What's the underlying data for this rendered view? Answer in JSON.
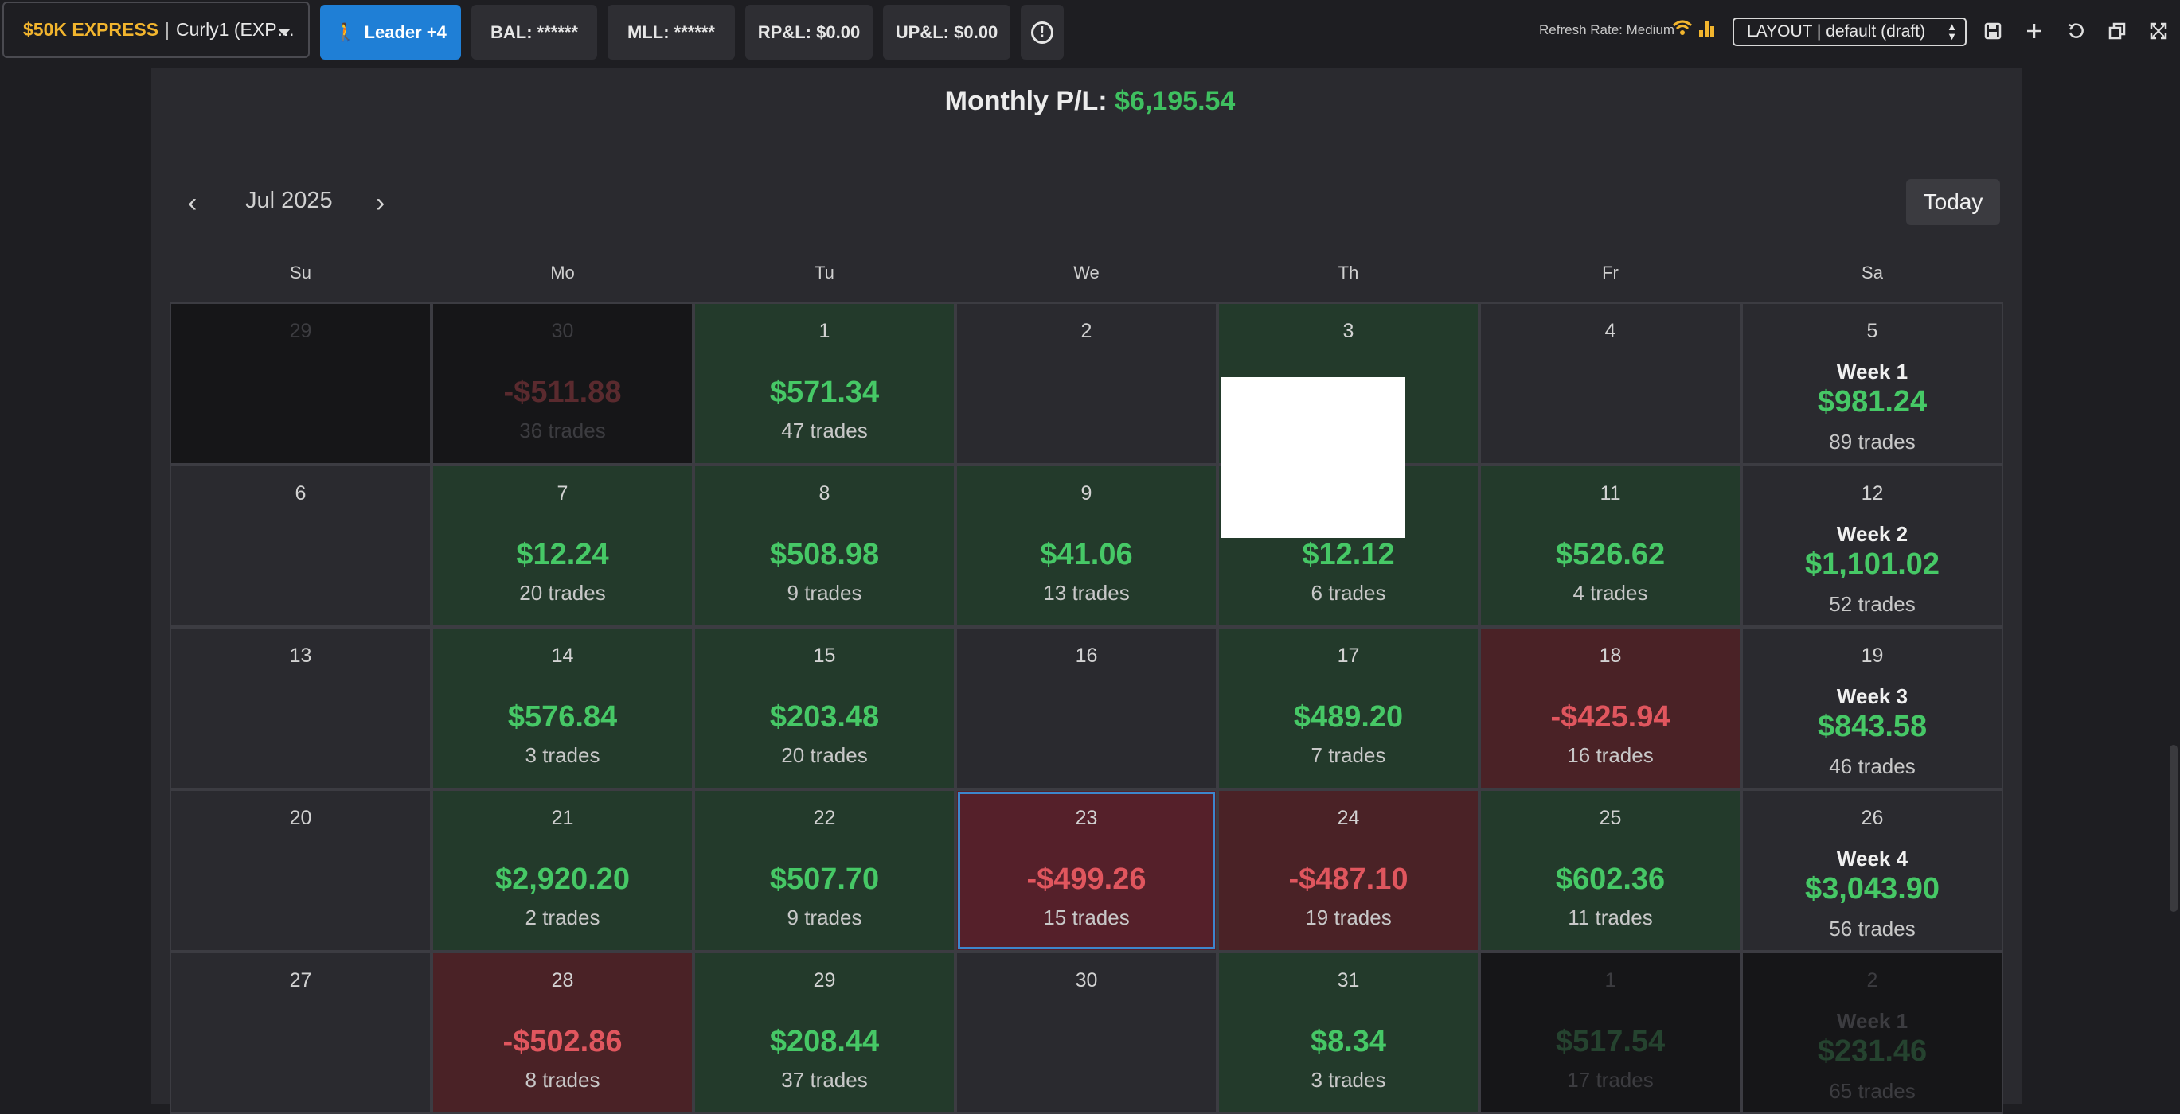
{
  "topbar": {
    "account_name": "$50K EXPRESS",
    "account_sep": "|",
    "account_sub": "Curly1 (EXP…",
    "leader_label": "Leader +4",
    "bal": "BAL: ******",
    "mll": "MLL: ******",
    "rpl": "RP&L: $0.00",
    "upl": "UP&L: $0.00",
    "refresh_rate": "Refresh Rate: Medium",
    "layout_select": "LAYOUT | default (draft)"
  },
  "calendar": {
    "monthly_label": "Monthly P/L:",
    "monthly_value": "$6,195.54",
    "month": "Jul 2025",
    "today_label": "Today",
    "weekdays": [
      "Su",
      "Mo",
      "Tu",
      "We",
      "Th",
      "Fr",
      "Sa"
    ],
    "days": [
      {
        "day": "29",
        "state": "outside"
      },
      {
        "day": "30",
        "pnl": "-$511.88",
        "trades": "36 trades",
        "state": "outside",
        "sign": "r"
      },
      {
        "day": "1",
        "pnl": "$571.34",
        "trades": "47 trades",
        "state": "pos",
        "sign": "g"
      },
      {
        "day": "2",
        "state": "empty"
      },
      {
        "day": "3",
        "state": "pos"
      },
      {
        "day": "4",
        "state": "empty"
      },
      {
        "day": "5",
        "week": "Week 1",
        "pnl": "$981.24",
        "trades": "89 trades",
        "state": "week",
        "sign": "g"
      },
      {
        "day": "6",
        "state": "empty"
      },
      {
        "day": "7",
        "pnl": "$12.24",
        "trades": "20 trades",
        "state": "pos",
        "sign": "g"
      },
      {
        "day": "8",
        "pnl": "$508.98",
        "trades": "9 trades",
        "state": "pos",
        "sign": "g"
      },
      {
        "day": "9",
        "pnl": "$41.06",
        "trades": "13 trades",
        "state": "pos",
        "sign": "g"
      },
      {
        "day": "",
        "pnl": "$12.12",
        "trades": "6 trades",
        "state": "pos",
        "sign": "g"
      },
      {
        "day": "11",
        "pnl": "$526.62",
        "trades": "4 trades",
        "state": "pos",
        "sign": "g"
      },
      {
        "day": "12",
        "week": "Week 2",
        "pnl": "$1,101.02",
        "trades": "52 trades",
        "state": "week",
        "sign": "g"
      },
      {
        "day": "13",
        "state": "empty"
      },
      {
        "day": "14",
        "pnl": "$576.84",
        "trades": "3 trades",
        "state": "pos",
        "sign": "g"
      },
      {
        "day": "15",
        "pnl": "$203.48",
        "trades": "20 trades",
        "state": "pos",
        "sign": "g"
      },
      {
        "day": "16",
        "state": "empty"
      },
      {
        "day": "17",
        "pnl": "$489.20",
        "trades": "7 trades",
        "state": "pos",
        "sign": "g"
      },
      {
        "day": "18",
        "pnl": "-$425.94",
        "trades": "16 trades",
        "state": "neg",
        "sign": "r"
      },
      {
        "day": "19",
        "week": "Week 3",
        "pnl": "$843.58",
        "trades": "46 trades",
        "state": "week",
        "sign": "g"
      },
      {
        "day": "20",
        "state": "empty"
      },
      {
        "day": "21",
        "pnl": "$2,920.20",
        "trades": "2 trades",
        "state": "pos",
        "sign": "g"
      },
      {
        "day": "22",
        "pnl": "$507.70",
        "trades": "9 trades",
        "state": "pos",
        "sign": "g"
      },
      {
        "day": "23",
        "pnl": "-$499.26",
        "trades": "15 trades",
        "state": "selected",
        "sign": "r"
      },
      {
        "day": "24",
        "pnl": "-$487.10",
        "trades": "19 trades",
        "state": "neg",
        "sign": "r"
      },
      {
        "day": "25",
        "pnl": "$602.36",
        "trades": "11 trades",
        "state": "pos",
        "sign": "g"
      },
      {
        "day": "26",
        "week": "Week 4",
        "pnl": "$3,043.90",
        "trades": "56 trades",
        "state": "week",
        "sign": "g"
      },
      {
        "day": "27",
        "state": "empty"
      },
      {
        "day": "28",
        "pnl": "-$502.86",
        "trades": "8 trades",
        "state": "neg",
        "sign": "r"
      },
      {
        "day": "29",
        "pnl": "$208.44",
        "trades": "37 trades",
        "state": "pos",
        "sign": "g"
      },
      {
        "day": "30",
        "state": "empty"
      },
      {
        "day": "31",
        "pnl": "$8.34",
        "trades": "3 trades",
        "state": "pos",
        "sign": "g"
      },
      {
        "day": "1",
        "pnl": "$517.54",
        "trades": "17 trades",
        "state": "outside",
        "sign": "g"
      },
      {
        "day": "2",
        "week": "Week 1",
        "pnl": "$231.46",
        "trades": "65 trades",
        "state": "outside week",
        "sign": "g"
      }
    ]
  },
  "colors": {
    "profit": "#46c866",
    "loss": "#e0565e",
    "accent": "#1f7fd6",
    "brand": "#f2b52e"
  }
}
